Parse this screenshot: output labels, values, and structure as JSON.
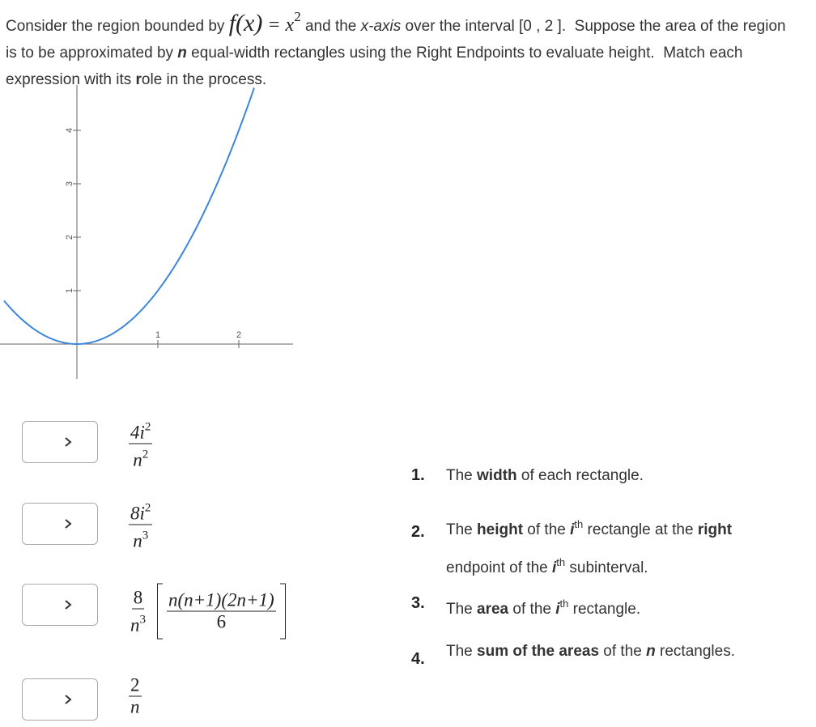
{
  "question": [
    {
      "text": "Consider the region bounded by ",
      "style": "plain"
    },
    {
      "text": "f",
      "style": "math-big"
    },
    {
      "text": "(x)",
      "style": "math-big"
    },
    {
      "text": " = ",
      "style": "math"
    },
    {
      "text": "x",
      "style": "math"
    },
    {
      "text": "2",
      "style": "math-sup"
    },
    {
      "text": " and the ",
      "style": "plain"
    },
    {
      "text": "x-axis",
      "style": "italic"
    },
    {
      "text": " over the interval [0 , 2 ].  Suppose the area of the region is to be approximated by ",
      "style": "plain"
    },
    {
      "text": "n",
      "style": "bold-italic"
    },
    {
      "text": " equal-width rectangles using the Right Endpoints to evaluate height.  Match each expression with its ",
      "style": "plain"
    },
    {
      "text": "r",
      "style": "bold"
    },
    {
      "text": "ole in the process.",
      "style": "plain"
    }
  ],
  "graph": {
    "xticks": [
      1,
      2
    ],
    "yticks": [
      1,
      2,
      3,
      4
    ]
  },
  "expressions": [
    {
      "num": "4i",
      "num_exp": "2",
      "den": "n",
      "den_exp": "2"
    },
    {
      "num": "8i",
      "num_exp": "2",
      "den": "n",
      "den_exp": "3"
    },
    {
      "num": "8",
      "den": "n",
      "den_exp": "3",
      "inner_num": "n(n+1)(2n+1)",
      "inner_den": "6"
    },
    {
      "num": "2",
      "den": "n"
    }
  ],
  "roles": [
    {
      "number": "1.",
      "parts": [
        {
          "text": "The ",
          "style": "plain"
        },
        {
          "text": "width",
          "style": "bold"
        },
        {
          "text": " of each rectangle.",
          "style": "plain"
        }
      ]
    },
    {
      "number": "2.",
      "parts": [
        {
          "text": "The ",
          "style": "plain"
        },
        {
          "text": "height",
          "style": "bold"
        },
        {
          "text": " of the ",
          "style": "plain"
        },
        {
          "text": "i",
          "style": "bold-italic"
        },
        {
          "text": "th",
          "style": "sup"
        },
        {
          "text": " rectangle at the ",
          "style": "plain"
        },
        {
          "text": "right",
          "style": "bold"
        },
        {
          "text": " endpoint of the ",
          "style": "plain"
        },
        {
          "text": "i",
          "style": "bold-italic"
        },
        {
          "text": "th",
          "style": "sup"
        },
        {
          "text": " subinterval.",
          "style": "plain"
        }
      ]
    },
    {
      "number": "3.",
      "parts": [
        {
          "text": "The ",
          "style": "plain"
        },
        {
          "text": "area",
          "style": "bold"
        },
        {
          "text": " of the ",
          "style": "plain"
        },
        {
          "text": "i",
          "style": "bold-italic"
        },
        {
          "text": "th",
          "style": "sup"
        },
        {
          "text": " rectangle.",
          "style": "plain"
        }
      ]
    },
    {
      "number": "4.",
      "parts": [
        {
          "text": "The ",
          "style": "plain"
        },
        {
          "text": "sum of the areas",
          "style": "bold"
        },
        {
          "text": " of the ",
          "style": "plain"
        },
        {
          "text": "n",
          "style": "bold-italic"
        },
        {
          "text": " rectangles.",
          "style": "plain"
        }
      ]
    }
  ]
}
